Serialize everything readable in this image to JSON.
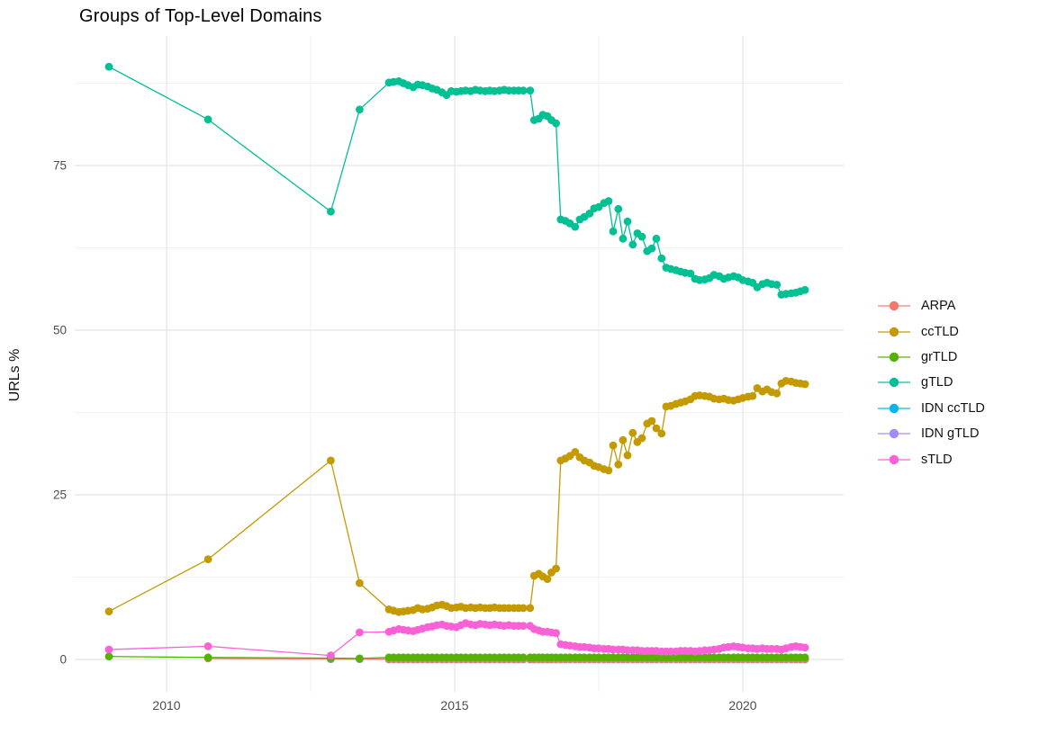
{
  "title": "Groups of Top-Level Domains",
  "chart_data": {
    "type": "line",
    "title": "Groups of Top-Level Domains",
    "xlabel": "",
    "ylabel": "URLs %",
    "x_tick_labels": [
      "2010",
      "2015",
      "2020"
    ],
    "x_ticks": [
      2010,
      2015,
      2020
    ],
    "x_minor_ticks": [
      2012.5,
      2017.5
    ],
    "y_tick_labels": [
      "0",
      "25",
      "50",
      "75"
    ],
    "y_ticks": [
      0,
      25,
      50,
      75
    ],
    "y_minor_ticks": [
      12.5,
      37.5,
      62.5,
      87.5
    ],
    "xlim": [
      2008.4,
      2021.75
    ],
    "ylim": [
      -4.6,
      94.7
    ],
    "grid": true,
    "legend_position": "right",
    "marker": "point-on-line",
    "x_groups": {
      "early": [
        2009.0,
        2010.72,
        2012.85,
        2013.35
      ],
      "early_no09": [
        2010.72,
        2012.85,
        2013.35
      ],
      "early_idn": [
        2012.85,
        2013.35
      ],
      "dense1": [
        2013.86,
        2013.94,
        2014.03,
        2014.11,
        2014.19,
        2014.28,
        2014.36,
        2014.44,
        2014.53,
        2014.61,
        2014.69,
        2014.78,
        2014.86,
        2014.94,
        2015.03,
        2015.11,
        2015.19,
        2015.28,
        2015.36,
        2015.44,
        2015.53,
        2015.61,
        2015.69,
        2015.78,
        2015.86,
        2015.94,
        2016.03,
        2016.11,
        2016.19,
        2016.31
      ],
      "trans": [
        2016.38,
        2016.46,
        2016.53,
        2016.61,
        2016.68,
        2016.76
      ],
      "dense2": [
        2016.84,
        2016.92,
        2017.0,
        2017.09,
        2017.17,
        2017.25,
        2017.34,
        2017.42,
        2017.5,
        2017.59,
        2017.67,
        2017.75,
        2017.84,
        2017.92,
        2018.0,
        2018.09,
        2018.17,
        2018.25,
        2018.34,
        2018.42,
        2018.5,
        2018.59,
        2018.67,
        2018.75,
        2018.84,
        2018.92,
        2019.0,
        2019.09,
        2019.17,
        2019.25,
        2019.34,
        2019.42,
        2019.5,
        2019.59,
        2019.67,
        2019.75,
        2019.84,
        2019.92,
        2020.0,
        2020.09,
        2020.17,
        2020.25,
        2020.34,
        2020.42,
        2020.5,
        2020.59,
        2020.67,
        2020.75,
        2020.84,
        2020.92,
        2021.0,
        2021.08
      ]
    },
    "series": [
      {
        "name": "ARPA",
        "color": "#F8766D",
        "x_groups": [
          "early_no09",
          "dense1",
          "trans",
          "dense2"
        ],
        "values": [
          0.15,
          0.1,
          0.1
        ],
        "fill": 0.05
      },
      {
        "name": "ccTLD",
        "color": "#C49A00",
        "x_groups": [
          "early",
          "dense1",
          "trans",
          "dense2"
        ],
        "values": [
          7.3,
          15.2,
          30.2,
          11.6,
          7.6,
          7.4,
          7.2,
          7.3,
          7.4,
          7.5,
          7.8,
          7.6,
          7.7,
          7.9,
          8.2,
          8.3,
          8.1,
          7.8,
          7.9,
          8.0,
          7.8,
          7.9,
          7.8,
          7.9,
          7.8,
          7.8,
          7.9,
          7.8,
          7.8,
          7.8,
          7.8,
          7.8,
          7.8,
          7.8,
          12.7,
          13.0,
          12.6,
          12.2,
          13.2,
          13.8,
          30.2,
          30.5,
          30.9,
          31.5,
          30.7,
          30.2,
          29.9,
          29.4,
          29.2,
          28.9,
          28.7,
          32.5,
          29.6,
          33.3,
          31.0,
          34.4,
          33.0,
          33.6,
          35.8,
          36.2,
          35.1,
          34.3,
          38.4,
          38.5,
          38.8,
          39.0,
          39.2,
          39.5,
          40.0,
          40.1,
          40.0,
          39.9,
          39.6,
          39.5,
          39.6,
          39.4,
          39.3,
          39.5,
          39.7,
          39.9,
          40.0,
          41.2,
          40.7,
          41.0,
          40.6,
          40.4,
          41.9,
          42.3,
          42.2,
          42.0,
          41.9,
          41.8
        ]
      },
      {
        "name": "grTLD",
        "color": "#53B400",
        "x_groups": [
          "early",
          "dense1",
          "trans",
          "dense2"
        ],
        "values": [
          0.45,
          0.3,
          0.2,
          0.15
        ],
        "fill": 0.3
      },
      {
        "name": "gTLD",
        "color": "#00C094",
        "x_groups": [
          "early",
          "dense1",
          "trans",
          "dense2"
        ],
        "values": [
          90.0,
          82.0,
          68.0,
          83.5,
          87.6,
          87.7,
          87.8,
          87.5,
          87.2,
          86.9,
          87.3,
          87.2,
          87.0,
          86.7,
          86.5,
          86.1,
          85.7,
          86.3,
          86.2,
          86.3,
          86.4,
          86.3,
          86.5,
          86.4,
          86.3,
          86.4,
          86.3,
          86.4,
          86.5,
          86.4,
          86.4,
          86.4,
          86.4,
          86.4,
          81.9,
          82.1,
          82.7,
          82.5,
          81.9,
          81.4,
          66.8,
          66.6,
          66.2,
          65.7,
          66.8,
          67.2,
          67.7,
          68.5,
          68.7,
          69.3,
          69.6,
          65.0,
          68.4,
          63.9,
          66.5,
          63.0,
          64.7,
          64.2,
          62.0,
          62.4,
          63.9,
          60.9,
          59.5,
          59.3,
          59.1,
          58.9,
          58.7,
          58.6,
          57.8,
          57.6,
          57.7,
          57.9,
          58.4,
          58.2,
          57.8,
          58.0,
          58.2,
          58.0,
          57.6,
          57.4,
          57.2,
          56.5,
          57.0,
          57.2,
          57.0,
          56.9,
          55.4,
          55.5,
          55.6,
          55.7,
          55.9,
          56.1
        ]
      },
      {
        "name": "IDN ccTLD",
        "color": "#00B6EB",
        "x_groups": [
          "early_idn",
          "dense1",
          "trans",
          "dense2"
        ],
        "values": [
          0.05,
          0.05
        ],
        "fill": 0.05
      },
      {
        "name": "IDN gTLD",
        "color": "#A58AFF",
        "x_groups": [
          "dense1",
          "trans",
          "dense2"
        ],
        "values": [],
        "fill": 0.0
      },
      {
        "name": "sTLD",
        "color": "#FB61D7",
        "x_groups": [
          "early",
          "dense1",
          "trans",
          "dense2"
        ],
        "values": [
          1.5,
          2.0,
          0.6,
          4.1,
          4.2,
          4.4,
          4.6,
          4.5,
          4.4,
          4.3,
          4.5,
          4.7,
          4.9,
          5.0,
          5.2,
          5.3,
          5.1,
          5.0,
          4.9,
          5.2,
          5.5,
          5.3,
          5.2,
          5.4,
          5.3,
          5.2,
          5.3,
          5.2,
          5.1,
          5.2,
          5.1,
          5.1,
          5.1,
          5.1,
          4.6,
          4.4,
          4.2,
          4.2,
          4.1,
          4.0,
          2.3,
          2.2,
          2.1,
          2.0,
          1.9,
          1.9,
          1.8,
          1.7,
          1.7,
          1.6,
          1.6,
          1.5,
          1.5,
          1.5,
          1.4,
          1.4,
          1.4,
          1.3,
          1.3,
          1.3,
          1.3,
          1.2,
          1.2,
          1.2,
          1.2,
          1.3,
          1.3,
          1.3,
          1.2,
          1.3,
          1.4,
          1.4,
          1.5,
          1.6,
          1.8,
          1.9,
          2.0,
          1.9,
          1.8,
          1.7,
          1.7,
          1.6,
          1.7,
          1.6,
          1.6,
          1.6,
          1.5,
          1.7,
          1.9,
          2.0,
          1.9,
          1.8
        ]
      }
    ],
    "draw_order": [
      "IDN gTLD",
      "IDN ccTLD",
      "ARPA",
      "grTLD",
      "ccTLD",
      "sTLD",
      "gTLD"
    ],
    "colors": {
      "grid_major": "#e4e4e4",
      "grid_minor": "#f2f2f2",
      "tick_text": "#4d4d4d",
      "title_text": "#000000"
    }
  }
}
